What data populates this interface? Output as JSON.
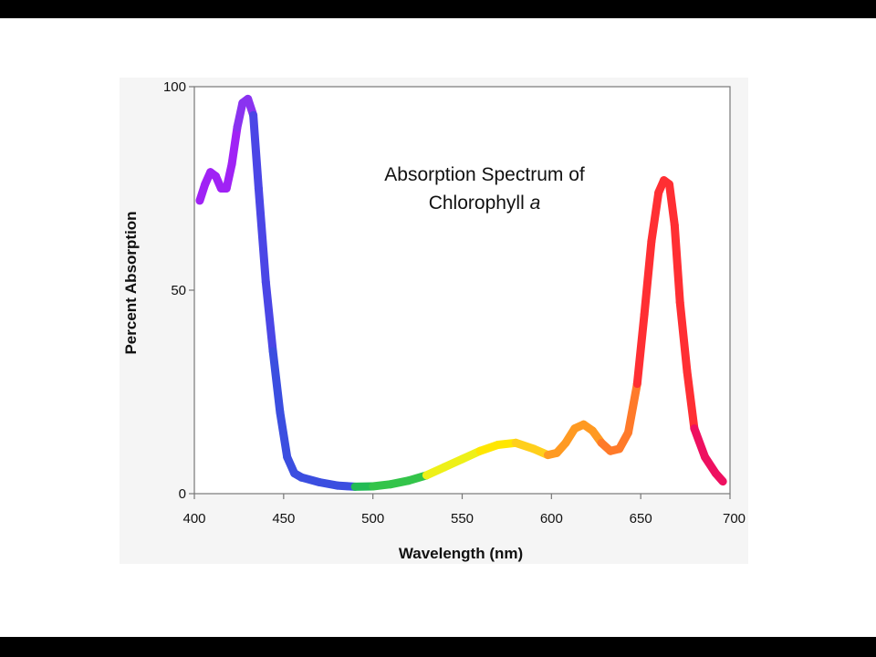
{
  "chart_data": {
    "type": "line",
    "title_line1": "Absorption Spectrum of",
    "title_line2": "Chlorophyll",
    "title_italic": "a",
    "xlabel": "Wavelength (nm)",
    "ylabel": "Percent Absorption",
    "xlim": [
      400,
      700
    ],
    "ylim": [
      0,
      100
    ],
    "xticks": [
      "400",
      "450",
      "500",
      "550",
      "600",
      "650",
      "700"
    ],
    "yticks": [
      "0",
      "50",
      "100"
    ],
    "grid": false,
    "series": [
      {
        "x": [
          403,
          406,
          409,
          412,
          415,
          418,
          421,
          424,
          427,
          430,
          433,
          436,
          440,
          444,
          448,
          452,
          456,
          460,
          470,
          480,
          490,
          500,
          510,
          520,
          530,
          540,
          550,
          560,
          570,
          580,
          590,
          598,
          603,
          608,
          613,
          618,
          623,
          628,
          633,
          638,
          643,
          648,
          652,
          656,
          660,
          663,
          666,
          669,
          672,
          676,
          680,
          686,
          692,
          696
        ],
        "y": [
          72,
          76,
          79,
          78,
          75,
          75,
          81,
          90,
          96,
          97,
          93,
          75,
          52,
          35,
          20,
          9,
          5,
          4,
          2.8,
          2,
          1.7,
          1.8,
          2.3,
          3.2,
          4.5,
          6.5,
          8.5,
          10.5,
          12,
          12.5,
          11,
          9.5,
          10,
          12.5,
          16,
          17,
          15.5,
          12.5,
          10.5,
          11,
          15,
          27,
          44,
          62,
          74,
          77,
          76,
          66,
          47,
          30,
          16,
          9,
          5,
          3
        ]
      }
    ],
    "colors": [
      "#9922ff",
      "#a427f3",
      "#3b4bdd",
      "#3da0f0",
      "#22bb44",
      "#33cc44",
      "#eef010",
      "#ffea00",
      "#ffd21a",
      "#ff8f22",
      "#ff3333",
      "#ee0066"
    ]
  }
}
